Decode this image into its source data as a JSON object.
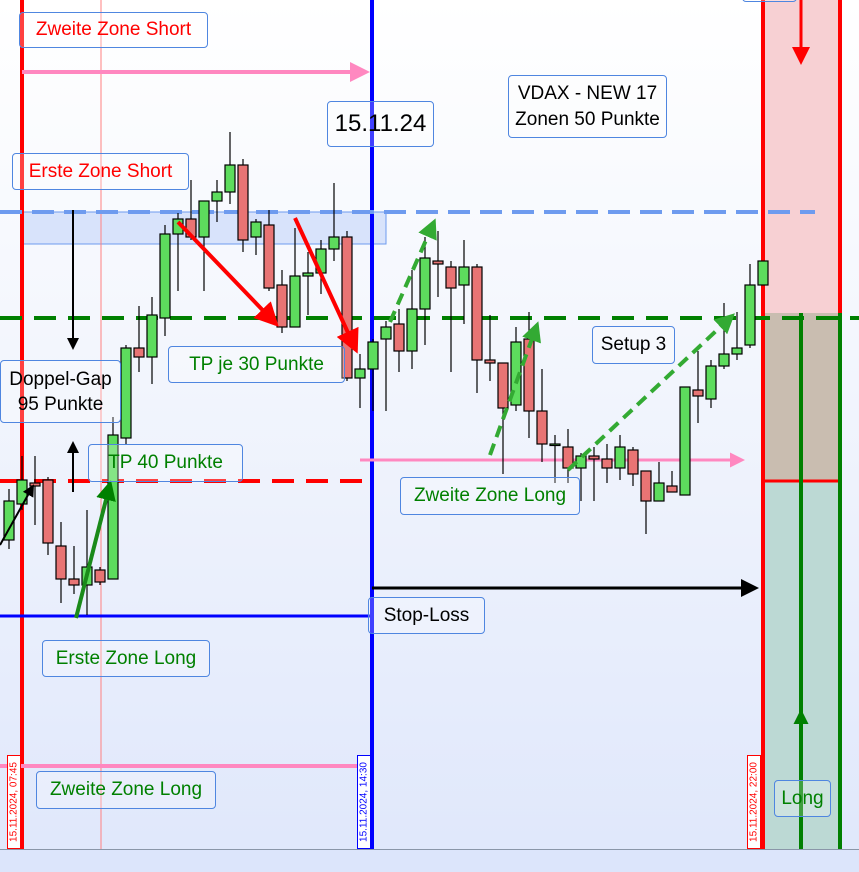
{
  "chart_data": {
    "type": "candlestick",
    "title": "VDAX - NEW 17",
    "subtitle": "Zonen 50 Punkte",
    "date_label": "15.11.24",
    "colors": {
      "up": "#5ddc5d",
      "down": "#e87474",
      "short_zone": "#f7d0d3",
      "neutral_zone": "#c9bdb0",
      "long_zone": "#bcd9d4"
    },
    "candles": [
      [
        120,
        137,
        117,
        133
      ],
      [
        132,
        148,
        130,
        140
      ],
      [
        139,
        148,
        125,
        138
      ],
      [
        140,
        141,
        115,
        119
      ],
      [
        118,
        126,
        99,
        107
      ],
      [
        107,
        118,
        102,
        105
      ],
      [
        105,
        130,
        95,
        111
      ],
      [
        110,
        111,
        105,
        106
      ],
      [
        107,
        161,
        107,
        155
      ],
      [
        154,
        185,
        152,
        184
      ],
      [
        184,
        198,
        176,
        181
      ],
      [
        181,
        201,
        172,
        195
      ],
      [
        194,
        225,
        188,
        222
      ],
      [
        222,
        229,
        203,
        227
      ],
      [
        227,
        240,
        220,
        221
      ],
      [
        221,
        233,
        203,
        233
      ],
      [
        233,
        240,
        226,
        236
      ],
      [
        236,
        256,
        232,
        245
      ],
      [
        245,
        247,
        216,
        220
      ],
      [
        221,
        227,
        215,
        226
      ],
      [
        225,
        230,
        203,
        204
      ],
      [
        205,
        210,
        189,
        191
      ],
      [
        191,
        224,
        191,
        208
      ],
      [
        208,
        216,
        195,
        209
      ],
      [
        209,
        220,
        202,
        217
      ],
      [
        217,
        239,
        213,
        221
      ],
      [
        221,
        223,
        173,
        174
      ],
      [
        174,
        182,
        164,
        177
      ],
      [
        177,
        187,
        163,
        186
      ],
      [
        187,
        193,
        163,
        191
      ],
      [
        192,
        197,
        176,
        183
      ],
      [
        183,
        210,
        177,
        197
      ],
      [
        197,
        221,
        185,
        214
      ],
      [
        213,
        223,
        201,
        212
      ],
      [
        211,
        213,
        176,
        204
      ],
      [
        205,
        220,
        192,
        211
      ],
      [
        211,
        212,
        169,
        180
      ],
      [
        180,
        195,
        173,
        179
      ],
      [
        179,
        179,
        142,
        164
      ],
      [
        165,
        191,
        163,
        186
      ],
      [
        187,
        196,
        154,
        163
      ],
      [
        163,
        177,
        146,
        152
      ],
      [
        152,
        155,
        139,
        152
      ],
      [
        151,
        157,
        139,
        144
      ],
      [
        144,
        149,
        133,
        148
      ],
      [
        148,
        151,
        133,
        147
      ],
      [
        147,
        152,
        139,
        144
      ],
      [
        144,
        155,
        140,
        151
      ],
      [
        150,
        151,
        138,
        142
      ],
      [
        143,
        143,
        122,
        133
      ],
      [
        133,
        146,
        133,
        139
      ],
      [
        138,
        143,
        136,
        136
      ],
      [
        135,
        171,
        135,
        171
      ],
      [
        170,
        183,
        159,
        168
      ],
      [
        167,
        180,
        164,
        178
      ],
      [
        178,
        199,
        177,
        182
      ],
      [
        182,
        196,
        180,
        184
      ],
      [
        185,
        212,
        184,
        205
      ],
      [
        205,
        213,
        205,
        213
      ]
    ],
    "x_markers": [
      {
        "label": "15.11.2024, 07:45",
        "color": "#ff0000"
      },
      {
        "label": "15.11.2024, 14:30",
        "color": "#0000ff"
      },
      {
        "label": "15.11.2024, 22:00",
        "color": "#ff0000"
      }
    ]
  },
  "annotations": {
    "zweite_zone_short": "Zweite Zone Short",
    "erste_zone_short": "Erste Zone Short",
    "date": "15.11.24",
    "vdax_title": "VDAX - NEW 17\nZonen 50 Punkte",
    "doppel_gap": "Doppel-Gap\n95 Punkte",
    "tp_30": "TP je 30 Punkte",
    "tp_40": "TP 40 Punkte",
    "setup": "Setup 3",
    "zweite_zone_long_mid": "Zweite Zone Long",
    "stop_loss": "Stop-Loss",
    "erste_zone_long": "Erste Zone Long",
    "zweite_zone_long_bottom": "Zweite Zone Long",
    "long": "Long"
  }
}
